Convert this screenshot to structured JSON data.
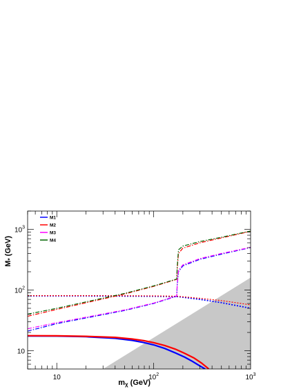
{
  "chart_data": {
    "type": "line",
    "title": "",
    "xlabel": "mχ (GeV)",
    "xlabel_main": "m",
    "xlabel_sub": "χ",
    "xlabel_unit": " (GeV)",
    "ylabel": "M* (GeV)",
    "ylabel_main": "M",
    "ylabel_sub": "*",
    "ylabel_unit": " (GeV)",
    "xscale": "log",
    "yscale": "log",
    "xlim": [
      5,
      1000
    ],
    "ylim": [
      5,
      2000
    ],
    "grid": false,
    "legend_position": "top-left",
    "x_ticks": [
      {
        "base": "10",
        "exp": "",
        "value": 10
      },
      {
        "base": "10",
        "exp": "2",
        "value": 100
      },
      {
        "base": "10",
        "exp": "3",
        "value": 1000
      }
    ],
    "y_ticks": [
      {
        "base": "10",
        "exp": "",
        "value": 10
      },
      {
        "base": "10",
        "exp": "2",
        "value": 100
      },
      {
        "base": "10",
        "exp": "3",
        "value": 1000
      }
    ],
    "excluded_region": {
      "fill": "#c8c8c8",
      "boundary": [
        [
          30,
          5
        ],
        [
          1000,
          160
        ]
      ]
    },
    "legend": [
      {
        "name": "M1",
        "color": "#0000ff",
        "style": "solid"
      },
      {
        "name": "M2",
        "color": "#ff0000",
        "style": "solid"
      },
      {
        "name": "M3",
        "color": "#ff00ff",
        "style": "solid"
      },
      {
        "name": "M4",
        "color": "#006400",
        "style": "solid"
      }
    ],
    "series": [
      {
        "color": "#0000ff",
        "style": "solid",
        "width": 2.2,
        "x": [
          5,
          10,
          20,
          40,
          60,
          80,
          100,
          130,
          170,
          210,
          250,
          290,
          320,
          340
        ],
        "y": [
          17.5,
          17.4,
          17.0,
          16.0,
          14.8,
          13.6,
          12.5,
          10.9,
          9.1,
          7.8,
          6.7,
          5.8,
          5.3,
          5.0
        ]
      },
      {
        "color": "#ff0000",
        "style": "solid",
        "width": 2.2,
        "x": [
          5,
          10,
          20,
          40,
          60,
          80,
          100,
          130,
          170,
          210,
          260,
          310,
          350,
          370
        ],
        "y": [
          17.7,
          17.6,
          17.3,
          16.6,
          15.6,
          14.6,
          13.6,
          12.2,
          10.5,
          9.0,
          7.6,
          6.3,
          5.4,
          5.0
        ]
      },
      {
        "color": "#0000ff",
        "style": "dotted",
        "width": 1.8,
        "x": [
          5,
          20,
          50,
          100,
          175,
          300,
          500,
          1000
        ],
        "y": [
          80,
          80,
          79.5,
          79,
          78,
          70,
          62,
          50
        ]
      },
      {
        "color": "#ff0000",
        "style": "dotted",
        "width": 1.2,
        "x": [
          5,
          20,
          50,
          100,
          175,
          300,
          500,
          1000
        ],
        "y": [
          81,
          81,
          80.5,
          80,
          79,
          73,
          67,
          57
        ]
      },
      {
        "color": "#0000ff",
        "style": "dashdot",
        "width": 1.2,
        "x": [
          5,
          10,
          50,
          100,
          173,
          175,
          180,
          200,
          300,
          500,
          1000
        ],
        "y": [
          21,
          28,
          46,
          60,
          79,
          120,
          200,
          250,
          320,
          390,
          500
        ]
      },
      {
        "color": "#ff00ff",
        "style": "dashdot",
        "width": 1.2,
        "x": [
          5,
          10,
          50,
          100,
          173,
          175,
          180,
          200,
          300,
          500,
          1000
        ],
        "y": [
          23,
          29,
          47,
          61,
          80,
          125,
          210,
          260,
          330,
          400,
          505
        ]
      },
      {
        "color": "#ff0000",
        "style": "dashdot",
        "width": 1.2,
        "x": [
          5,
          10,
          50,
          100,
          173,
          175,
          180,
          200,
          300,
          500,
          1000
        ],
        "y": [
          37,
          48,
          86,
          115,
          150,
          220,
          400,
          490,
          600,
          720,
          930
        ]
      },
      {
        "color": "#006400",
        "style": "dashdot",
        "width": 1.2,
        "x": [
          5,
          10,
          50,
          100,
          173,
          175,
          180,
          200,
          300,
          500,
          1000
        ],
        "y": [
          40,
          50,
          88,
          117,
          152,
          240,
          460,
          530,
          630,
          740,
          940
        ]
      }
    ]
  }
}
